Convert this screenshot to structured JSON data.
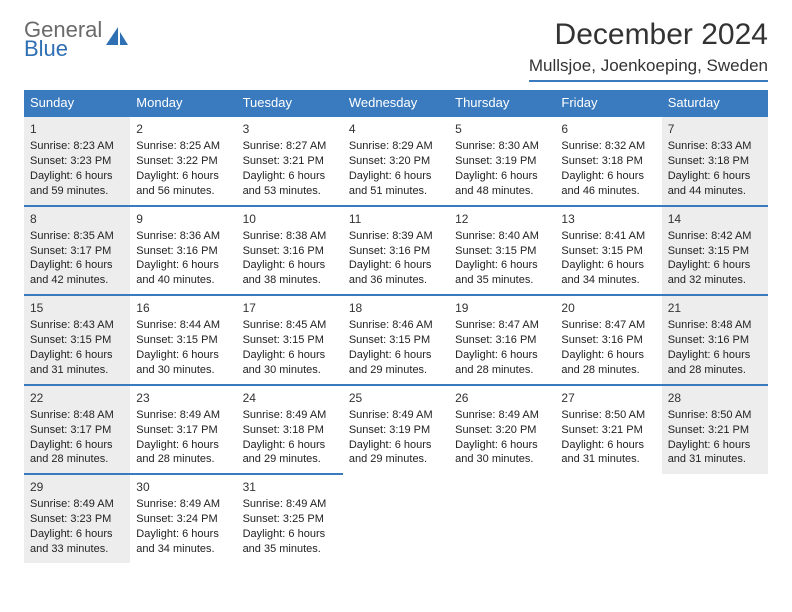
{
  "logo": {
    "line1": "General",
    "line2": "Blue"
  },
  "title": "December 2024",
  "location": "Mullsjoe, Joenkoeping, Sweden",
  "colors": {
    "header_bg": "#3a7bbf",
    "header_text": "#ffffff",
    "rule": "#3a7bbf",
    "shade_bg": "#ededed",
    "text": "#222222",
    "logo_gray": "#6a6a6a",
    "logo_blue": "#2f6fb3"
  },
  "weekdays": [
    "Sunday",
    "Monday",
    "Tuesday",
    "Wednesday",
    "Thursday",
    "Friday",
    "Saturday"
  ],
  "weeks": [
    [
      {
        "n": "1",
        "shade": true,
        "sr": "Sunrise: 8:23 AM",
        "ss": "Sunset: 3:23 PM",
        "dl": "Daylight: 6 hours and 59 minutes."
      },
      {
        "n": "2",
        "shade": false,
        "sr": "Sunrise: 8:25 AM",
        "ss": "Sunset: 3:22 PM",
        "dl": "Daylight: 6 hours and 56 minutes."
      },
      {
        "n": "3",
        "shade": false,
        "sr": "Sunrise: 8:27 AM",
        "ss": "Sunset: 3:21 PM",
        "dl": "Daylight: 6 hours and 53 minutes."
      },
      {
        "n": "4",
        "shade": false,
        "sr": "Sunrise: 8:29 AM",
        "ss": "Sunset: 3:20 PM",
        "dl": "Daylight: 6 hours and 51 minutes."
      },
      {
        "n": "5",
        "shade": false,
        "sr": "Sunrise: 8:30 AM",
        "ss": "Sunset: 3:19 PM",
        "dl": "Daylight: 6 hours and 48 minutes."
      },
      {
        "n": "6",
        "shade": false,
        "sr": "Sunrise: 8:32 AM",
        "ss": "Sunset: 3:18 PM",
        "dl": "Daylight: 6 hours and 46 minutes."
      },
      {
        "n": "7",
        "shade": true,
        "sr": "Sunrise: 8:33 AM",
        "ss": "Sunset: 3:18 PM",
        "dl": "Daylight: 6 hours and 44 minutes."
      }
    ],
    [
      {
        "n": "8",
        "shade": true,
        "sr": "Sunrise: 8:35 AM",
        "ss": "Sunset: 3:17 PM",
        "dl": "Daylight: 6 hours and 42 minutes."
      },
      {
        "n": "9",
        "shade": false,
        "sr": "Sunrise: 8:36 AM",
        "ss": "Sunset: 3:16 PM",
        "dl": "Daylight: 6 hours and 40 minutes."
      },
      {
        "n": "10",
        "shade": false,
        "sr": "Sunrise: 8:38 AM",
        "ss": "Sunset: 3:16 PM",
        "dl": "Daylight: 6 hours and 38 minutes."
      },
      {
        "n": "11",
        "shade": false,
        "sr": "Sunrise: 8:39 AM",
        "ss": "Sunset: 3:16 PM",
        "dl": "Daylight: 6 hours and 36 minutes."
      },
      {
        "n": "12",
        "shade": false,
        "sr": "Sunrise: 8:40 AM",
        "ss": "Sunset: 3:15 PM",
        "dl": "Daylight: 6 hours and 35 minutes."
      },
      {
        "n": "13",
        "shade": false,
        "sr": "Sunrise: 8:41 AM",
        "ss": "Sunset: 3:15 PM",
        "dl": "Daylight: 6 hours and 34 minutes."
      },
      {
        "n": "14",
        "shade": true,
        "sr": "Sunrise: 8:42 AM",
        "ss": "Sunset: 3:15 PM",
        "dl": "Daylight: 6 hours and 32 minutes."
      }
    ],
    [
      {
        "n": "15",
        "shade": true,
        "sr": "Sunrise: 8:43 AM",
        "ss": "Sunset: 3:15 PM",
        "dl": "Daylight: 6 hours and 31 minutes."
      },
      {
        "n": "16",
        "shade": false,
        "sr": "Sunrise: 8:44 AM",
        "ss": "Sunset: 3:15 PM",
        "dl": "Daylight: 6 hours and 30 minutes."
      },
      {
        "n": "17",
        "shade": false,
        "sr": "Sunrise: 8:45 AM",
        "ss": "Sunset: 3:15 PM",
        "dl": "Daylight: 6 hours and 30 minutes."
      },
      {
        "n": "18",
        "shade": false,
        "sr": "Sunrise: 8:46 AM",
        "ss": "Sunset: 3:15 PM",
        "dl": "Daylight: 6 hours and 29 minutes."
      },
      {
        "n": "19",
        "shade": false,
        "sr": "Sunrise: 8:47 AM",
        "ss": "Sunset: 3:16 PM",
        "dl": "Daylight: 6 hours and 28 minutes."
      },
      {
        "n": "20",
        "shade": false,
        "sr": "Sunrise: 8:47 AM",
        "ss": "Sunset: 3:16 PM",
        "dl": "Daylight: 6 hours and 28 minutes."
      },
      {
        "n": "21",
        "shade": true,
        "sr": "Sunrise: 8:48 AM",
        "ss": "Sunset: 3:16 PM",
        "dl": "Daylight: 6 hours and 28 minutes."
      }
    ],
    [
      {
        "n": "22",
        "shade": true,
        "sr": "Sunrise: 8:48 AM",
        "ss": "Sunset: 3:17 PM",
        "dl": "Daylight: 6 hours and 28 minutes."
      },
      {
        "n": "23",
        "shade": false,
        "sr": "Sunrise: 8:49 AM",
        "ss": "Sunset: 3:17 PM",
        "dl": "Daylight: 6 hours and 28 minutes."
      },
      {
        "n": "24",
        "shade": false,
        "sr": "Sunrise: 8:49 AM",
        "ss": "Sunset: 3:18 PM",
        "dl": "Daylight: 6 hours and 29 minutes."
      },
      {
        "n": "25",
        "shade": false,
        "sr": "Sunrise: 8:49 AM",
        "ss": "Sunset: 3:19 PM",
        "dl": "Daylight: 6 hours and 29 minutes."
      },
      {
        "n": "26",
        "shade": false,
        "sr": "Sunrise: 8:49 AM",
        "ss": "Sunset: 3:20 PM",
        "dl": "Daylight: 6 hours and 30 minutes."
      },
      {
        "n": "27",
        "shade": false,
        "sr": "Sunrise: 8:50 AM",
        "ss": "Sunset: 3:21 PM",
        "dl": "Daylight: 6 hours and 31 minutes."
      },
      {
        "n": "28",
        "shade": true,
        "sr": "Sunrise: 8:50 AM",
        "ss": "Sunset: 3:21 PM",
        "dl": "Daylight: 6 hours and 31 minutes."
      }
    ],
    [
      {
        "n": "29",
        "shade": true,
        "sr": "Sunrise: 8:49 AM",
        "ss": "Sunset: 3:23 PM",
        "dl": "Daylight: 6 hours and 33 minutes."
      },
      {
        "n": "30",
        "shade": false,
        "sr": "Sunrise: 8:49 AM",
        "ss": "Sunset: 3:24 PM",
        "dl": "Daylight: 6 hours and 34 minutes."
      },
      {
        "n": "31",
        "shade": false,
        "sr": "Sunrise: 8:49 AM",
        "ss": "Sunset: 3:25 PM",
        "dl": "Daylight: 6 hours and 35 minutes."
      },
      {
        "empty": true
      },
      {
        "empty": true
      },
      {
        "empty": true
      },
      {
        "empty": true
      }
    ]
  ]
}
